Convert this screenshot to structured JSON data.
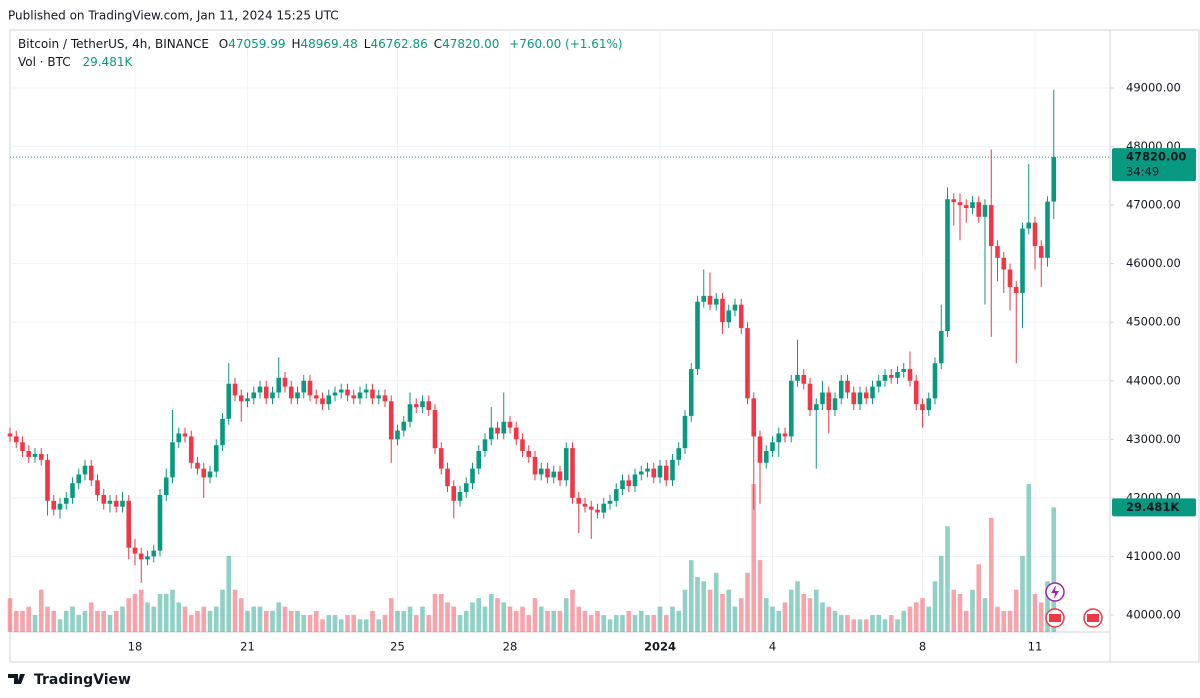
{
  "page": {
    "published": "Published on TradingView.com, Jan 11, 2024 15:25 UTC",
    "brand": "TradingView"
  },
  "chart_data": {
    "type": "candlestick",
    "title": "Bitcoin / TetherUS, 4h, BINANCE",
    "ohlc_legend": [
      {
        "prefix": "O",
        "text": "47059.99"
      },
      {
        "prefix": "H",
        "text": "48969.48"
      },
      {
        "prefix": "L",
        "text": "46762.86"
      },
      {
        "prefix": "C",
        "text": "47820.00"
      }
    ],
    "change_label": "+760.00 (+1.61%)",
    "volume_title": "Vol · BTC",
    "volume_value_label": "29.481K",
    "last_price_label": "47820.00",
    "countdown": "34:49",
    "up_color": "#089981",
    "down_color": "#f23645",
    "grid": true,
    "ylim": [
      39710,
      49990
    ],
    "yticks": [
      {
        "value": 40000,
        "label": "40000.00"
      },
      {
        "value": 41000,
        "label": "41000.00"
      },
      {
        "value": 42000,
        "label": "42000.00"
      },
      {
        "value": 43000,
        "label": "43000.00"
      },
      {
        "value": 44000,
        "label": "44000.00"
      },
      {
        "value": 45000,
        "label": "45000.00"
      },
      {
        "value": 46000,
        "label": "46000.00"
      },
      {
        "value": 47000,
        "label": "47000.00"
      },
      {
        "value": 48000,
        "label": "48000.00"
      },
      {
        "value": 49000,
        "label": "49000.00"
      }
    ],
    "volume_ylim": [
      0,
      35000
    ],
    "categories": [
      null,
      null,
      null,
      null,
      null,
      null,
      null,
      null,
      null,
      null,
      null,
      null,
      null,
      null,
      null,
      null,
      null,
      null,
      null,
      null,
      "18",
      null,
      null,
      null,
      null,
      null,
      null,
      null,
      null,
      null,
      null,
      null,
      null,
      null,
      null,
      null,
      null,
      null,
      "21",
      null,
      null,
      null,
      null,
      null,
      null,
      null,
      null,
      null,
      null,
      null,
      null,
      null,
      null,
      null,
      null,
      null,
      null,
      null,
      null,
      null,
      null,
      null,
      "25",
      null,
      null,
      null,
      null,
      null,
      null,
      null,
      null,
      null,
      null,
      null,
      null,
      null,
      null,
      null,
      null,
      null,
      "28",
      null,
      null,
      null,
      null,
      null,
      null,
      null,
      null,
      null,
      null,
      null,
      null,
      null,
      null,
      null,
      null,
      null,
      null,
      null,
      null,
      null,
      null,
      null,
      "2024",
      null,
      null,
      null,
      null,
      null,
      null,
      null,
      null,
      null,
      null,
      null,
      null,
      null,
      null,
      null,
      null,
      null,
      "4",
      null,
      null,
      null,
      null,
      null,
      null,
      null,
      null,
      null,
      null,
      null,
      null,
      null,
      null,
      null,
      null,
      null,
      null,
      null,
      null,
      null,
      null,
      null,
      "8",
      null,
      null,
      null,
      null,
      null,
      null,
      null,
      null,
      null,
      null,
      null,
      null,
      null,
      null,
      null,
      null,
      null,
      "11",
      null,
      null,
      null
    ],
    "open": [
      43100,
      43050,
      42950,
      42800,
      42700,
      42750,
      42650,
      41950,
      41800,
      41900,
      42000,
      42250,
      42400,
      42550,
      42300,
      42050,
      41900,
      41950,
      41850,
      41950,
      41150,
      41050,
      40950,
      41000,
      41100,
      42050,
      42350,
      42950,
      43100,
      43050,
      42600,
      42500,
      42350,
      42450,
      42900,
      43350,
      43950,
      43750,
      43650,
      43700,
      43800,
      43900,
      43700,
      43800,
      44050,
      43900,
      43700,
      43800,
      44000,
      43750,
      43700,
      43600,
      43750,
      43800,
      43850,
      43750,
      43700,
      43800,
      43850,
      43700,
      43750,
      43650,
      43000,
      43150,
      43300,
      43600,
      43550,
      43650,
      43500,
      42850,
      42500,
      42200,
      41950,
      42100,
      42250,
      42500,
      42800,
      43000,
      43200,
      43100,
      43300,
      43200,
      43000,
      42800,
      42700,
      42400,
      42500,
      42350,
      42450,
      42300,
      42850,
      42000,
      41900,
      41850,
      41800,
      41750,
      41900,
      41950,
      42150,
      42300,
      42200,
      42400,
      42450,
      42500,
      42350,
      42550,
      42300,
      42650,
      42850,
      43400,
      44200,
      45350,
      45450,
      45300,
      45400,
      45000,
      45200,
      45300,
      44900,
      43700,
      43050,
      42600,
      42800,
      42950,
      43100,
      43050,
      44000,
      44100,
      43950,
      43500,
      43600,
      43800,
      43500,
      43700,
      44000,
      43800,
      43600,
      43800,
      43700,
      43900,
      44000,
      44100,
      44050,
      44150,
      44200,
      44000,
      43600,
      43500,
      43700,
      44300,
      44850,
      47100,
      47050,
      47000,
      46950,
      47050,
      46800,
      47000,
      46300,
      46100,
      45900,
      45600,
      45500,
      46600,
      46700,
      46300,
      46100,
      47059.99
    ],
    "high": [
      43200,
      43150,
      43050,
      42900,
      42850,
      42850,
      42750,
      42050,
      42000,
      42100,
      42350,
      42500,
      42650,
      42650,
      42400,
      42150,
      42050,
      42050,
      42100,
      42050,
      41300,
      41150,
      41100,
      41200,
      42150,
      42500,
      43500,
      43200,
      43200,
      43150,
      42700,
      42600,
      42550,
      43000,
      43450,
      44300,
      44050,
      43850,
      43800,
      43900,
      44000,
      44000,
      43900,
      44400,
      44150,
      44000,
      43900,
      44100,
      44100,
      43850,
      43800,
      43850,
      43900,
      43950,
      43950,
      43850,
      43900,
      43950,
      43950,
      43850,
      43850,
      43750,
      43250,
      43400,
      43800,
      43700,
      43750,
      43750,
      43600,
      42950,
      42600,
      42300,
      42200,
      42350,
      42600,
      42900,
      43100,
      43550,
      43300,
      43800,
      43400,
      43300,
      43100,
      42900,
      42800,
      42600,
      42600,
      42550,
      42550,
      42950,
      42950,
      42100,
      42000,
      41950,
      41900,
      42000,
      42050,
      42250,
      42400,
      42400,
      42500,
      42550,
      42600,
      42600,
      42650,
      42650,
      42750,
      42950,
      43500,
      44300,
      45450,
      45900,
      45850,
      45500,
      45500,
      45300,
      45400,
      45400,
      45000,
      43800,
      43150,
      42900,
      43050,
      43200,
      43200,
      44100,
      44700,
      44200,
      44050,
      43700,
      44000,
      43900,
      43800,
      44100,
      44100,
      43900,
      43900,
      43900,
      44000,
      44100,
      44200,
      44200,
      44250,
      44300,
      44500,
      44100,
      43700,
      43800,
      44400,
      45300,
      47300,
      47200,
      47200,
      47100,
      47150,
      47150,
      47100,
      47950,
      46400,
      46200,
      46000,
      45700,
      46700,
      47700,
      46800,
      46400,
      47150,
      48969.48
    ],
    "low": [
      42950,
      42850,
      42700,
      42600,
      42600,
      42550,
      41700,
      41700,
      41650,
      41800,
      41900,
      42150,
      42300,
      42200,
      41950,
      41800,
      41750,
      41750,
      41750,
      40950,
      40850,
      40550,
      40850,
      40900,
      41000,
      41950,
      42250,
      42850,
      42950,
      42500,
      42400,
      42000,
      42250,
      42350,
      42800,
      43250,
      43650,
      43300,
      43550,
      43600,
      43700,
      43600,
      43600,
      43700,
      43800,
      43600,
      43600,
      43700,
      43650,
      43600,
      43500,
      43500,
      43650,
      43700,
      43650,
      43600,
      43600,
      43700,
      43600,
      43600,
      43550,
      42600,
      42900,
      43050,
      43200,
      43450,
      43450,
      43400,
      42750,
      42400,
      42100,
      41650,
      41850,
      42000,
      42150,
      42400,
      42700,
      42900,
      43000,
      43000,
      43100,
      42900,
      42700,
      42600,
      42300,
      42300,
      42250,
      42250,
      42200,
      42200,
      41900,
      41400,
      41750,
      41300,
      41650,
      41650,
      41800,
      41850,
      42050,
      42100,
      42100,
      42300,
      42350,
      42250,
      42250,
      42200,
      42200,
      42550,
      42750,
      43300,
      44100,
      45250,
      45200,
      45200,
      44800,
      44900,
      45100,
      44800,
      43600,
      41800,
      41900,
      42500,
      42700,
      42700,
      42950,
      42950,
      43900,
      43850,
      43400,
      42500,
      43500,
      43100,
      43400,
      43600,
      43700,
      43500,
      43500,
      43600,
      43600,
      43800,
      43900,
      43950,
      43950,
      44050,
      43900,
      43500,
      43200,
      43400,
      43600,
      44200,
      44750,
      46650,
      46400,
      46700,
      46850,
      46700,
      45300,
      44750,
      45700,
      45500,
      45200,
      44300,
      44900,
      46500,
      45900,
      45600,
      45950,
      46762.86
    ],
    "close": [
      43050,
      42950,
      42800,
      42700,
      42750,
      42650,
      41950,
      41800,
      41900,
      42000,
      42250,
      42400,
      42550,
      42300,
      42050,
      41900,
      41950,
      41850,
      41950,
      41150,
      41050,
      40950,
      41000,
      41100,
      42050,
      42350,
      42950,
      43100,
      43050,
      42600,
      42500,
      42350,
      42450,
      42900,
      43350,
      43950,
      43750,
      43650,
      43700,
      43800,
      43900,
      43700,
      43800,
      44050,
      43900,
      43700,
      43800,
      44000,
      43750,
      43700,
      43600,
      43750,
      43800,
      43850,
      43750,
      43700,
      43800,
      43850,
      43700,
      43750,
      43650,
      43000,
      43150,
      43300,
      43600,
      43550,
      43650,
      43500,
      42850,
      42500,
      42200,
      41950,
      42100,
      42250,
      42500,
      42800,
      43000,
      43200,
      43100,
      43300,
      43200,
      43000,
      42800,
      42700,
      42400,
      42500,
      42350,
      42450,
      42300,
      42850,
      42000,
      41900,
      41850,
      41800,
      41750,
      41900,
      41950,
      42150,
      42300,
      42200,
      42400,
      42450,
      42500,
      42350,
      42550,
      42300,
      42650,
      42850,
      43400,
      44200,
      45350,
      45450,
      45300,
      45400,
      45000,
      45200,
      45300,
      44900,
      43700,
      43050,
      42600,
      42800,
      42950,
      43100,
      43050,
      44000,
      44100,
      43950,
      43500,
      43600,
      43800,
      43500,
      43700,
      44000,
      43800,
      43600,
      43800,
      43700,
      43900,
      44000,
      44100,
      44050,
      44150,
      44200,
      44000,
      43600,
      43500,
      43700,
      44300,
      44850,
      47100,
      47050,
      47000,
      46950,
      47050,
      46800,
      47000,
      46300,
      46100,
      45900,
      45600,
      45500,
      46600,
      46700,
      46300,
      46100,
      47060,
      47820
    ],
    "volume": [
      8000,
      5000,
      5000,
      6000,
      4000,
      10000,
      6000,
      5000,
      3000,
      5000,
      6000,
      4000,
      5000,
      7000,
      5000,
      5000,
      4000,
      5000,
      6000,
      8000,
      9000,
      10000,
      7000,
      6000,
      9000,
      9000,
      10000,
      7000,
      6000,
      4000,
      5000,
      6000,
      5000,
      6000,
      10000,
      18000,
      10000,
      8000,
      5000,
      6000,
      6000,
      5000,
      5000,
      7000,
      6000,
      5000,
      5000,
      4000,
      4000,
      5000,
      3000,
      4000,
      4000,
      3000,
      4000,
      4000,
      3000,
      3000,
      5000,
      3000,
      4000,
      8000,
      5000,
      5000,
      6000,
      4000,
      6000,
      4000,
      9000,
      9000,
      7000,
      6000,
      4000,
      5000,
      7000,
      8000,
      6000,
      9000,
      8000,
      7000,
      6000,
      5000,
      6000,
      4000,
      8000,
      6000,
      5000,
      5000,
      5000,
      8000,
      10000,
      6000,
      5000,
      4000,
      5000,
      4000,
      3000,
      4000,
      4000,
      5000,
      4000,
      5000,
      4000,
      4000,
      6000,
      4000,
      6000,
      5000,
      10000,
      17000,
      13000,
      12000,
      10000,
      14000,
      9000,
      10000,
      6000,
      8000,
      14000,
      35000,
      17000,
      8000,
      6000,
      5000,
      7000,
      10000,
      12000,
      9000,
      8000,
      10000,
      7000,
      6000,
      5000,
      4000,
      4000,
      3000,
      3000,
      3000,
      4000,
      4000,
      3000,
      4000,
      3000,
      5000,
      6000,
      7000,
      8000,
      6000,
      12000,
      18000,
      25000,
      10000,
      9000,
      5000,
      10000,
      16000,
      8000,
      27000,
      6000,
      5000,
      5000,
      10000,
      18000,
      35000,
      9000,
      7000,
      12000,
      29481
    ]
  }
}
